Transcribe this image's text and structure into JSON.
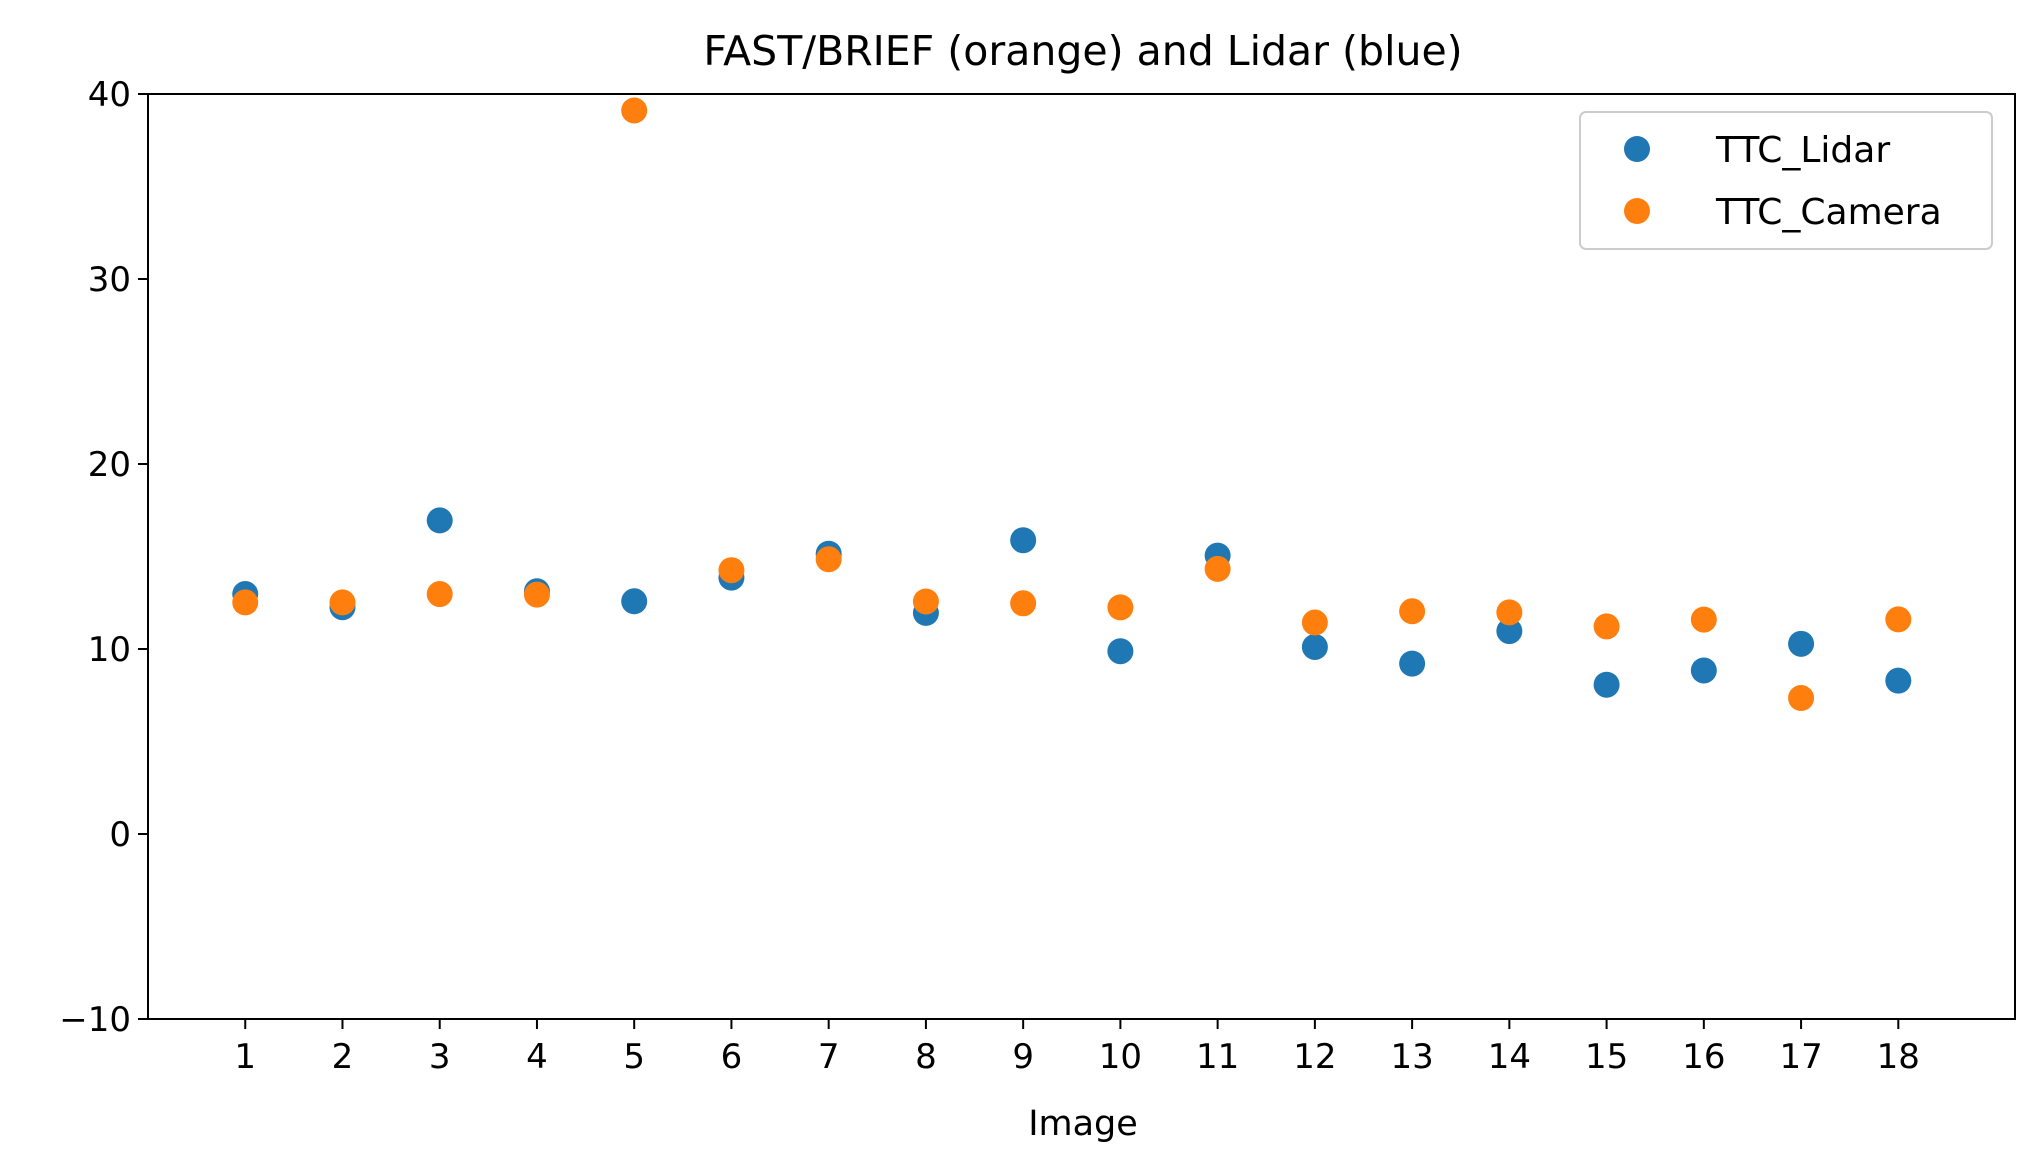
{
  "chart_data": {
    "type": "scatter",
    "title": "FAST/BRIEF (orange) and Lidar (blue)",
    "xlabel": "Image",
    "ylabel": "",
    "xlim": [
      0,
      19.2
    ],
    "ylim": [
      -10,
      40
    ],
    "x_ticks": [
      "1",
      "2",
      "3",
      "4",
      "5",
      "6",
      "7",
      "8",
      "9",
      "10",
      "11",
      "12",
      "13",
      "14",
      "15",
      "16",
      "17",
      "18"
    ],
    "y_ticks": [
      -10,
      0,
      10,
      20,
      30,
      40
    ],
    "y_tick_labels": [
      "−10",
      "0",
      "10",
      "20",
      "30",
      "40"
    ],
    "grid": false,
    "legend_position": "top-right",
    "x": [
      1,
      2,
      3,
      4,
      5,
      6,
      7,
      8,
      9,
      10,
      11,
      12,
      13,
      14,
      15,
      16,
      17,
      18
    ],
    "series": [
      {
        "name": "TTC_Lidar",
        "color": "#1f77b4",
        "values": [
          12.97,
          12.26,
          16.95,
          13.12,
          12.58,
          13.86,
          15.15,
          11.95,
          15.88,
          9.88,
          15.05,
          10.11,
          9.21,
          10.97,
          8.07,
          8.84,
          10.28,
          8.29
        ]
      },
      {
        "name": "TTC_Camera",
        "color": "#ff7f0e",
        "values": [
          12.52,
          12.52,
          12.97,
          12.94,
          39.11,
          14.26,
          14.85,
          12.57,
          12.47,
          12.25,
          14.33,
          11.43,
          12.04,
          11.98,
          11.22,
          11.59,
          7.35,
          11.6
        ]
      }
    ]
  }
}
